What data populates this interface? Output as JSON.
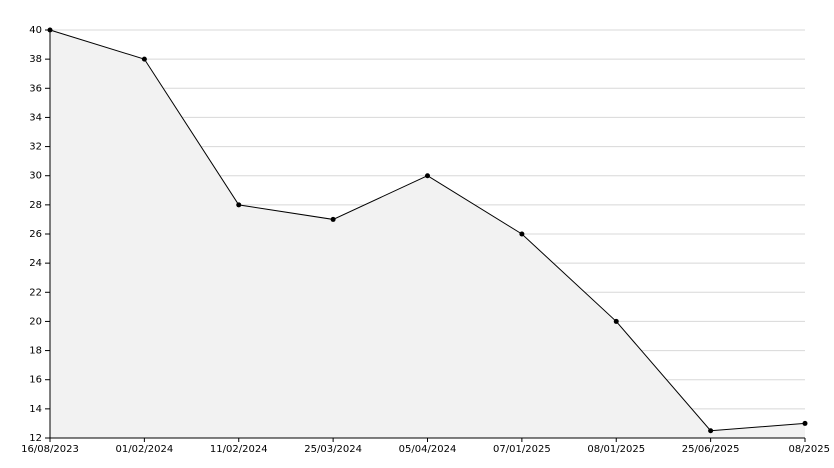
{
  "chart_data": {
    "type": "area",
    "categories": [
      "16/08/2023",
      "01/02/2024",
      "11/02/2024",
      "25/03/2024",
      "05/04/2024",
      "07/01/2025",
      "08/01/2025",
      "25/06/2025",
      "08/2025"
    ],
    "values": [
      40,
      38,
      28,
      27,
      30,
      26,
      20,
      12.5,
      13
    ],
    "color": "#000000",
    "fill": "#f2f2f2",
    "ylim": [
      12,
      40
    ],
    "yticks": [
      12,
      14,
      16,
      18,
      20,
      22,
      24,
      26,
      28,
      30,
      32,
      34,
      36,
      38,
      40
    ],
    "grid": true
  }
}
